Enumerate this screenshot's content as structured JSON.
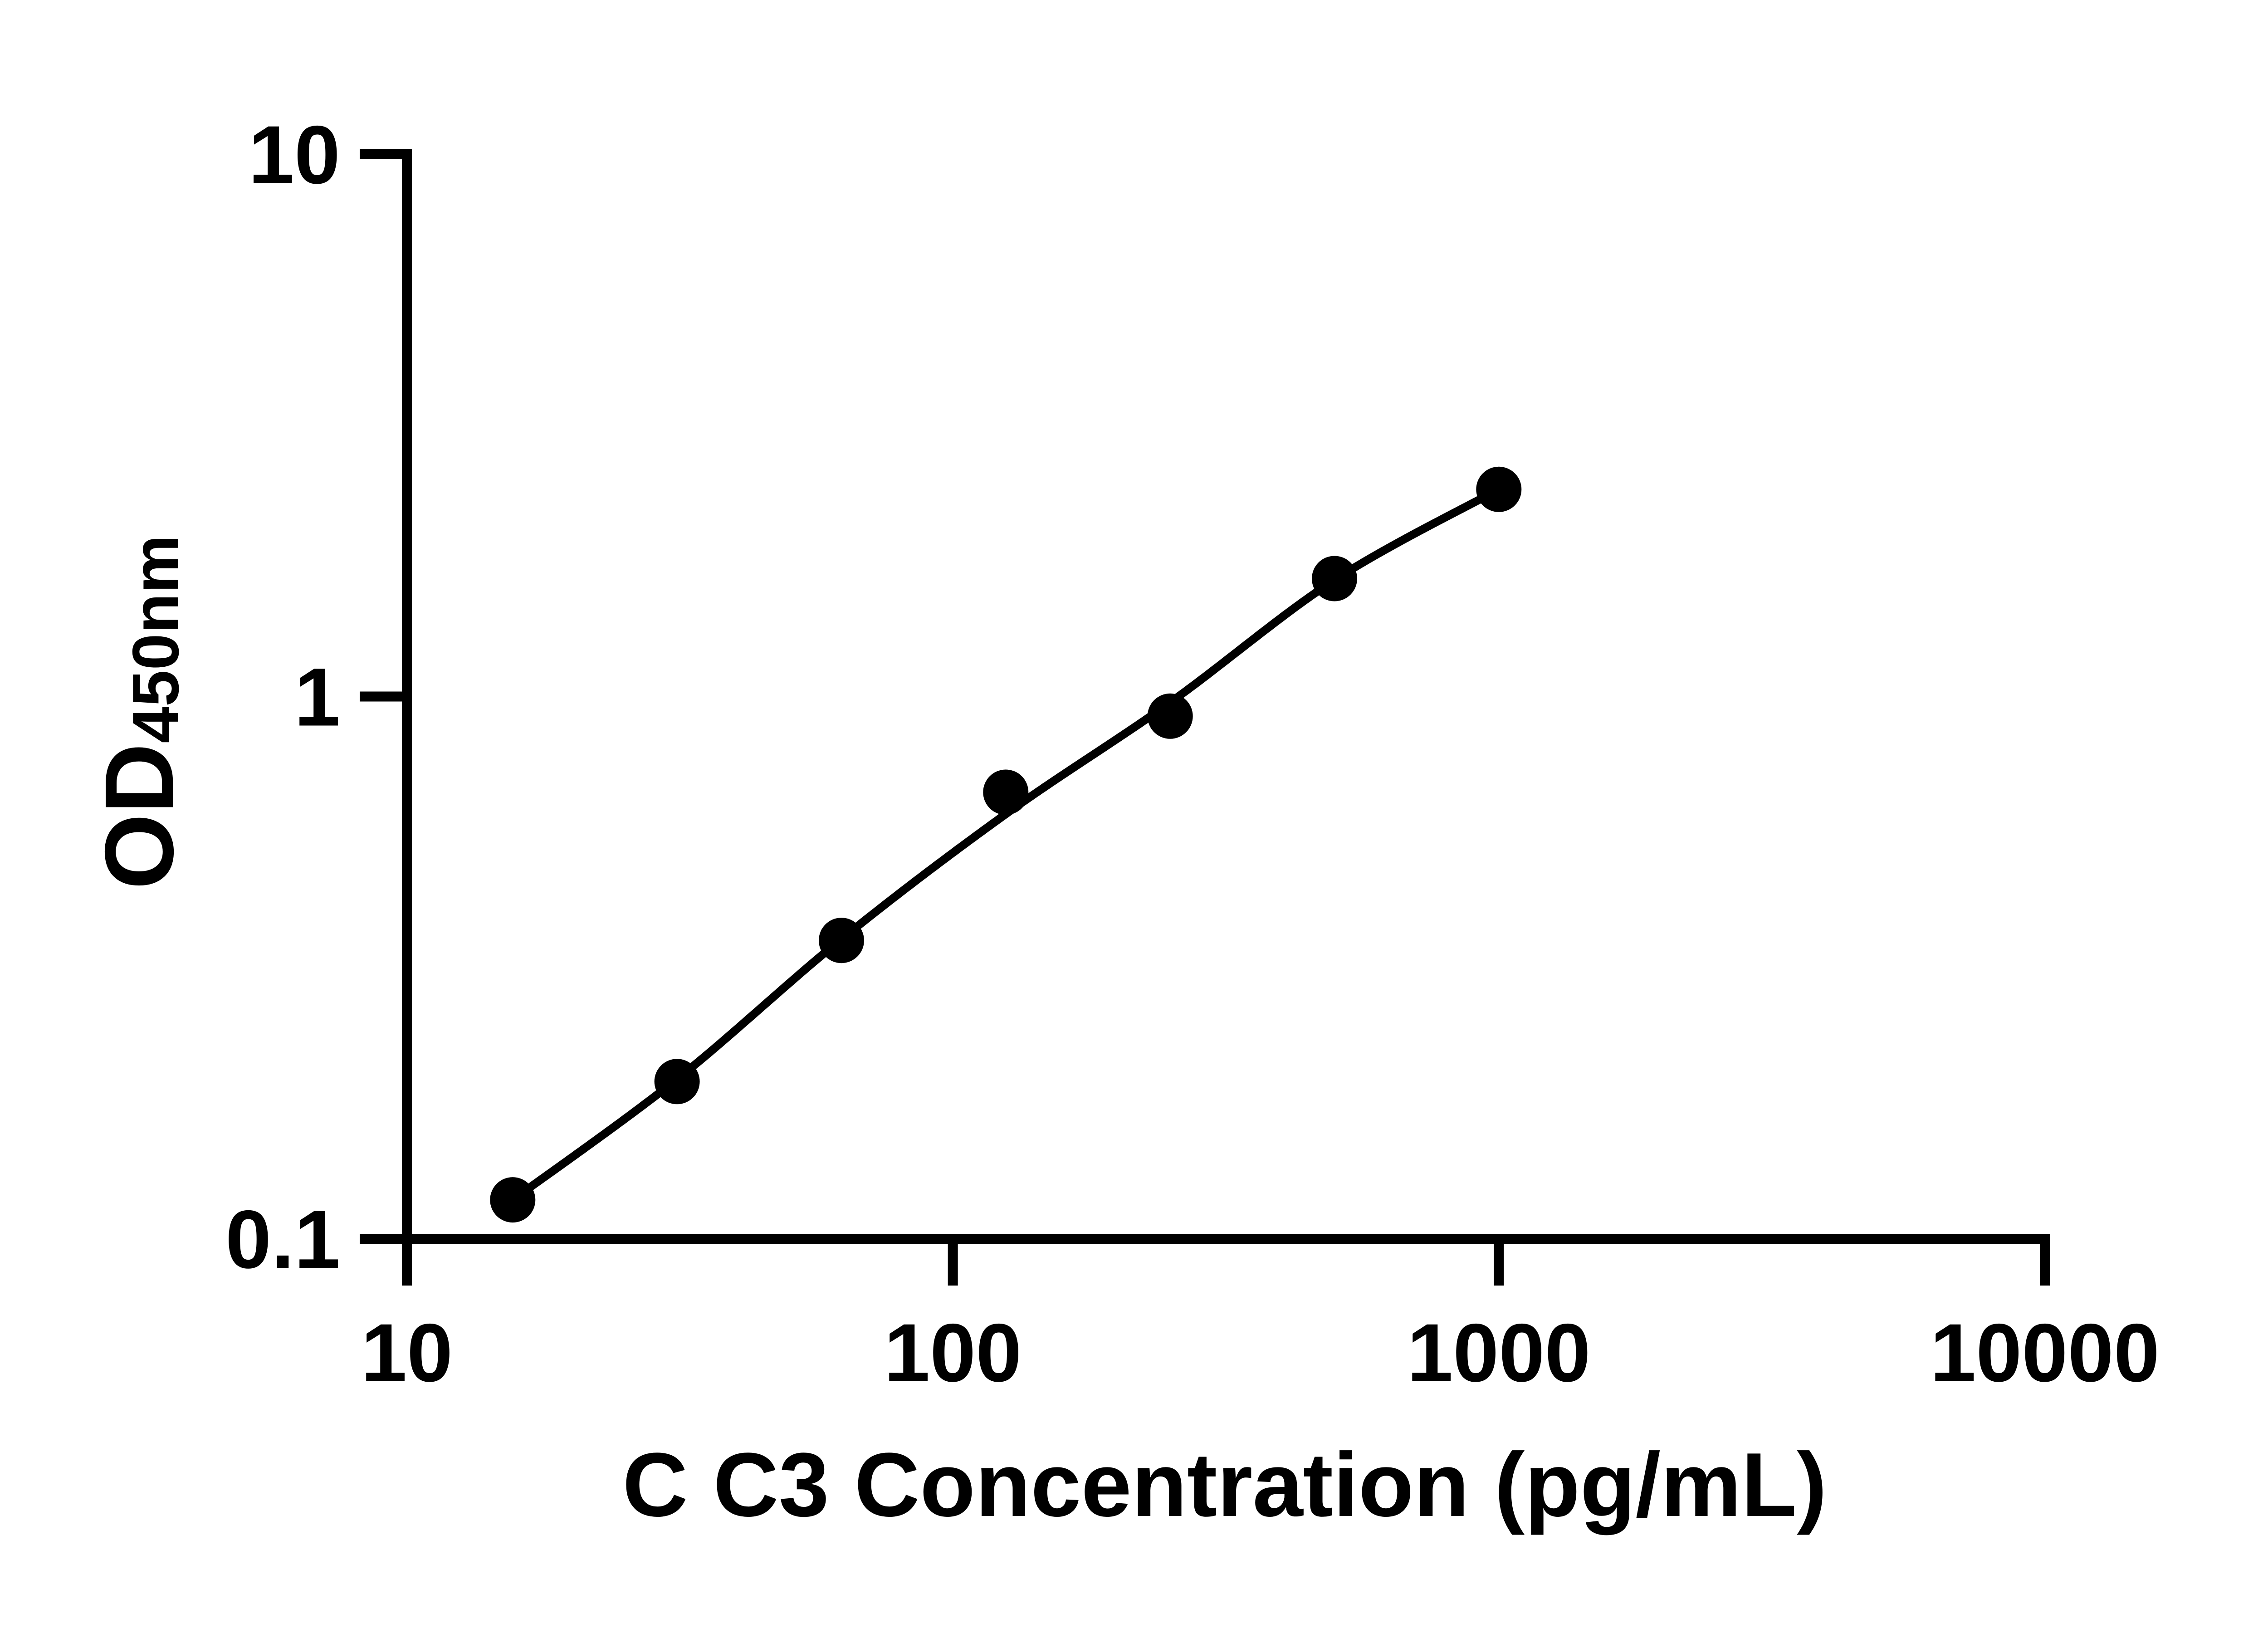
{
  "chart_data": {
    "type": "scatter",
    "title": "",
    "xlabel": "C C3 Concentration (pg/mL)",
    "ylabel_main": "OD",
    "ylabel_subscript": "450nm",
    "x_scale": "log10",
    "y_scale": "log10",
    "xlim": [
      10,
      10000
    ],
    "ylim": [
      0.1,
      10
    ],
    "grid": false,
    "legend": false,
    "background_color": "#ffffff",
    "ink_color": "#000000",
    "x_ticks": [
      {
        "value": 10,
        "label": "10"
      },
      {
        "value": 100,
        "label": "100"
      },
      {
        "value": 1000,
        "label": "1000"
      },
      {
        "value": 10000,
        "label": "10000"
      }
    ],
    "y_ticks": [
      {
        "value": 0.1,
        "label": "0.1"
      },
      {
        "value": 1,
        "label": "1"
      },
      {
        "value": 10,
        "label": "10"
      }
    ],
    "series": [
      {
        "name": "standard-curve",
        "marker": "filled-circle",
        "marker_color": "#000000",
        "line_color": "#000000",
        "points": [
          {
            "concentration_pg_ml": 15.625,
            "od450": 0.118
          },
          {
            "concentration_pg_ml": 31.25,
            "od450": 0.195
          },
          {
            "concentration_pg_ml": 62.5,
            "od450": 0.355
          },
          {
            "concentration_pg_ml": 125,
            "od450": 0.666
          },
          {
            "concentration_pg_ml": 250,
            "od450": 0.92
          },
          {
            "concentration_pg_ml": 500,
            "od450": 1.65
          },
          {
            "concentration_pg_ml": 1000,
            "od450": 2.41
          }
        ],
        "fit_curve_od": [
          0.118,
          0.197,
          0.357,
          0.607,
          0.975,
          1.64,
          2.41
        ]
      }
    ]
  }
}
